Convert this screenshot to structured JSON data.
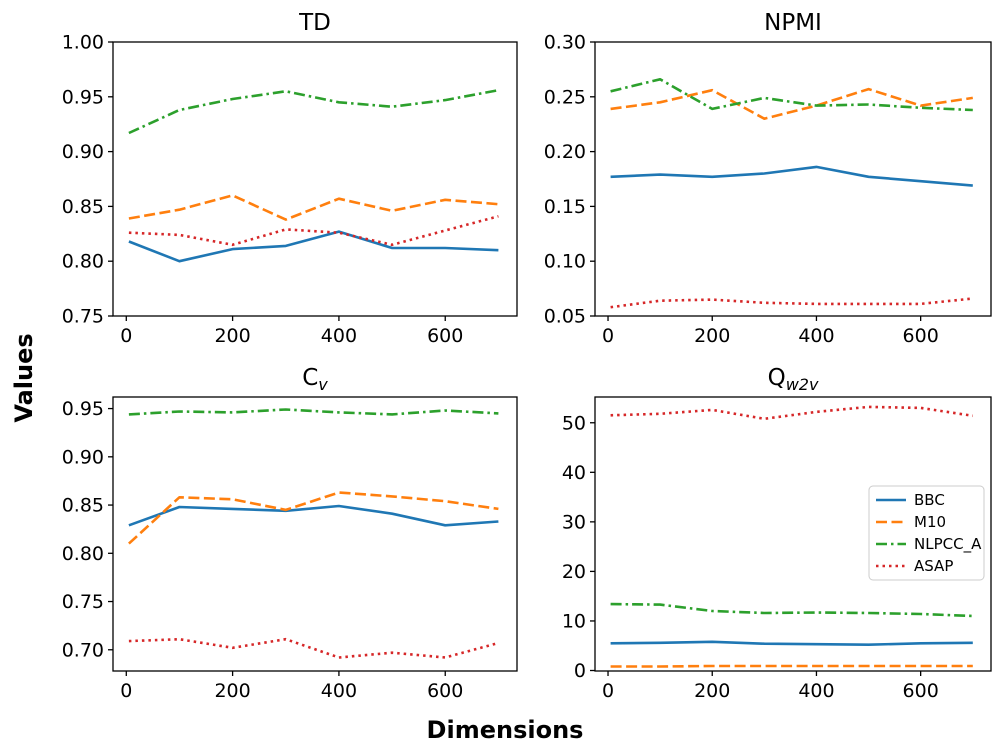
{
  "figure": {
    "xlabel": "Dimensions",
    "ylabel": "Values"
  },
  "series_styles": [
    {
      "name": "BBC",
      "color": "#1f77b4",
      "dash": "solid"
    },
    {
      "name": "M10",
      "color": "#ff7f0e",
      "dash": "dashed"
    },
    {
      "name": "NLPCC_A",
      "color": "#2ca02c",
      "dash": "dashdot"
    },
    {
      "name": "ASAP",
      "color": "#d62728",
      "dash": "dotted"
    }
  ],
  "chart_data": [
    {
      "type": "line",
      "title": "TD",
      "x": [
        5,
        100,
        200,
        300,
        400,
        500,
        600,
        700
      ],
      "xlim": [
        -25,
        735
      ],
      "xticks": [
        0,
        200,
        400,
        600
      ],
      "ylim": [
        0.75,
        1.0
      ],
      "yticks": [
        0.75,
        0.8,
        0.85,
        0.9,
        0.95,
        1.0
      ],
      "ytick_labels": [
        "0.75",
        "0.80",
        "0.85",
        "0.90",
        "0.95",
        "1.00"
      ],
      "grid": false,
      "series": [
        {
          "name": "BBC",
          "values": [
            0.818,
            0.8,
            0.811,
            0.814,
            0.827,
            0.812,
            0.812,
            0.81
          ]
        },
        {
          "name": "M10",
          "values": [
            0.839,
            0.847,
            0.86,
            0.838,
            0.857,
            0.846,
            0.856,
            0.852
          ]
        },
        {
          "name": "NLPCC_A",
          "values": [
            0.917,
            0.938,
            0.948,
            0.955,
            0.945,
            0.941,
            0.947,
            0.956
          ]
        },
        {
          "name": "ASAP",
          "values": [
            0.826,
            0.824,
            0.815,
            0.829,
            0.826,
            0.815,
            0.828,
            0.841
          ]
        }
      ]
    },
    {
      "type": "line",
      "title": "NPMI",
      "x": [
        5,
        100,
        200,
        300,
        400,
        500,
        600,
        700
      ],
      "xlim": [
        -25,
        735
      ],
      "xticks": [
        0,
        200,
        400,
        600
      ],
      "ylim": [
        0.05,
        0.3
      ],
      "yticks": [
        0.05,
        0.1,
        0.15,
        0.2,
        0.25,
        0.3
      ],
      "ytick_labels": [
        "0.05",
        "0.10",
        "0.15",
        "0.20",
        "0.25",
        "0.30"
      ],
      "grid": false,
      "series": [
        {
          "name": "BBC",
          "values": [
            0.177,
            0.179,
            0.177,
            0.18,
            0.186,
            0.177,
            0.173,
            0.169
          ]
        },
        {
          "name": "M10",
          "values": [
            0.239,
            0.245,
            0.256,
            0.23,
            0.242,
            0.257,
            0.242,
            0.249
          ]
        },
        {
          "name": "NLPCC_A",
          "values": [
            0.255,
            0.266,
            0.239,
            0.249,
            0.242,
            0.243,
            0.24,
            0.238
          ]
        },
        {
          "name": "ASAP",
          "values": [
            0.058,
            0.064,
            0.065,
            0.062,
            0.061,
            0.061,
            0.061,
            0.066
          ]
        }
      ]
    },
    {
      "type": "line",
      "title": "C",
      "title_sub": "v",
      "x": [
        5,
        100,
        200,
        300,
        400,
        500,
        600,
        700
      ],
      "xlim": [
        -25,
        735
      ],
      "xticks": [
        0,
        200,
        400,
        600
      ],
      "ylim": [
        0.678,
        0.962
      ],
      "yticks": [
        0.7,
        0.75,
        0.8,
        0.85,
        0.9,
        0.95
      ],
      "ytick_labels": [
        "0.70",
        "0.75",
        "0.80",
        "0.85",
        "0.90",
        "0.95"
      ],
      "grid": false,
      "series": [
        {
          "name": "BBC",
          "values": [
            0.829,
            0.848,
            0.846,
            0.844,
            0.849,
            0.841,
            0.829,
            0.833
          ]
        },
        {
          "name": "M10",
          "values": [
            0.81,
            0.858,
            0.856,
            0.845,
            0.863,
            0.859,
            0.854,
            0.846
          ]
        },
        {
          "name": "NLPCC_A",
          "values": [
            0.944,
            0.947,
            0.946,
            0.949,
            0.946,
            0.944,
            0.948,
            0.945
          ]
        },
        {
          "name": "ASAP",
          "values": [
            0.709,
            0.711,
            0.702,
            0.711,
            0.692,
            0.697,
            0.692,
            0.707
          ]
        }
      ]
    },
    {
      "type": "line",
      "title": "Q",
      "title_sub": "w2v",
      "x": [
        5,
        100,
        200,
        300,
        400,
        500,
        600,
        700
      ],
      "xlim": [
        -25,
        735
      ],
      "xticks": [
        0,
        200,
        400,
        600
      ],
      "ylim": [
        -0.1,
        55.2
      ],
      "yticks": [
        0,
        10,
        20,
        30,
        40,
        50
      ],
      "ytick_labels": [
        "0",
        "10",
        "20",
        "30",
        "40",
        "50"
      ],
      "grid": false,
      "legend": "center-right",
      "series": [
        {
          "name": "BBC",
          "values": [
            5.5,
            5.6,
            5.8,
            5.4,
            5.3,
            5.2,
            5.5,
            5.6
          ]
        },
        {
          "name": "M10",
          "values": [
            0.8,
            0.8,
            0.9,
            0.9,
            0.9,
            0.9,
            0.9,
            0.9
          ]
        },
        {
          "name": "NLPCC_A",
          "values": [
            13.4,
            13.3,
            12.0,
            11.6,
            11.7,
            11.6,
            11.4,
            11.0
          ]
        },
        {
          "name": "ASAP",
          "values": [
            51.5,
            51.8,
            52.6,
            50.8,
            52.2,
            53.2,
            53.0,
            51.4
          ]
        }
      ]
    }
  ]
}
